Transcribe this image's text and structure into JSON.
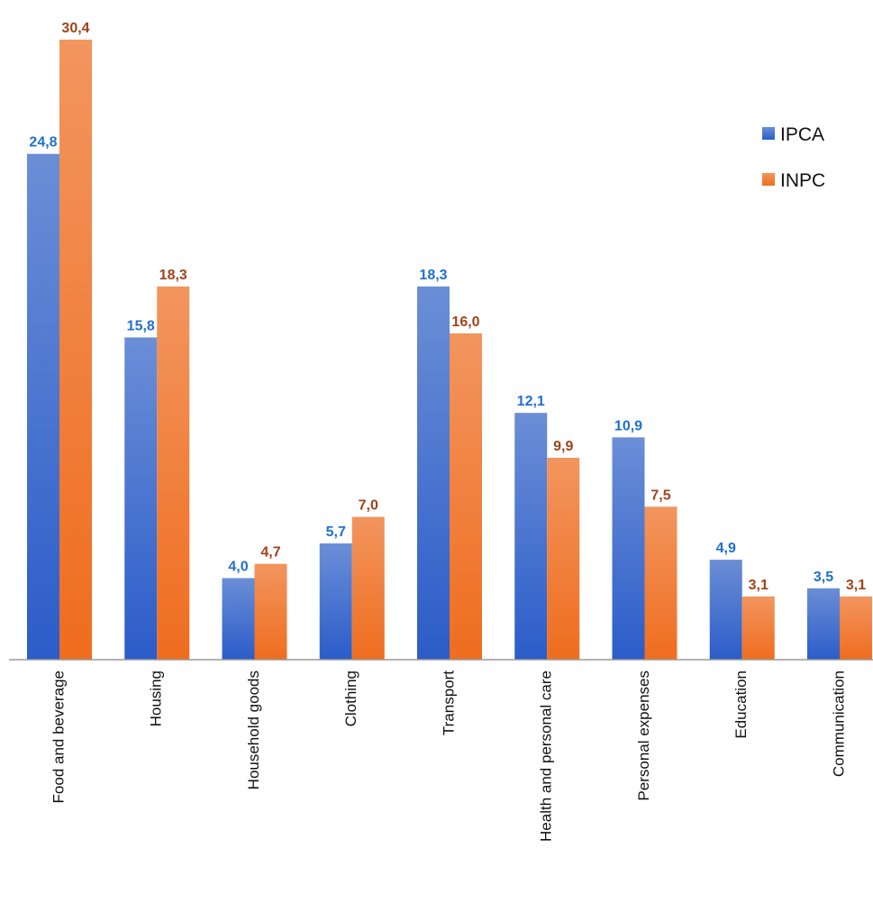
{
  "chart_data": {
    "type": "bar",
    "categories": [
      "Food and beverage",
      "Housing",
      "Household goods",
      "Clothing",
      "Transport",
      "Health and personal care",
      "Personal expenses",
      "Education",
      "Communication"
    ],
    "series": [
      {
        "name": "IPCA",
        "values": [
          24.8,
          15.8,
          4.0,
          5.7,
          18.3,
          12.1,
          10.9,
          4.9,
          3.5
        ],
        "labels": [
          "24,8",
          "15,8",
          "4,0",
          "5,7",
          "18,3",
          "12,1",
          "10,9",
          "4,9",
          "3,5"
        ]
      },
      {
        "name": "INPC",
        "values": [
          30.4,
          18.3,
          4.7,
          7.0,
          16.0,
          9.9,
          7.5,
          3.1,
          3.1
        ],
        "labels": [
          "30,4",
          "18,3",
          "4,7",
          "7,0",
          "16,0",
          "9,9",
          "7,5",
          "3,1",
          "3,1"
        ]
      }
    ],
    "ylim": [
      0,
      30.4
    ],
    "grid": false,
    "legend": "top-right"
  },
  "colors": {
    "ipca_top": "#6b8ed6",
    "ipca_bottom": "#2b5cc9",
    "inpc_top": "#f2955e",
    "inpc_bottom": "#ef6d1f",
    "ipca_label": "#1f6fd1",
    "inpc_label": "#a0421a",
    "axis": "#9a9a9a"
  }
}
